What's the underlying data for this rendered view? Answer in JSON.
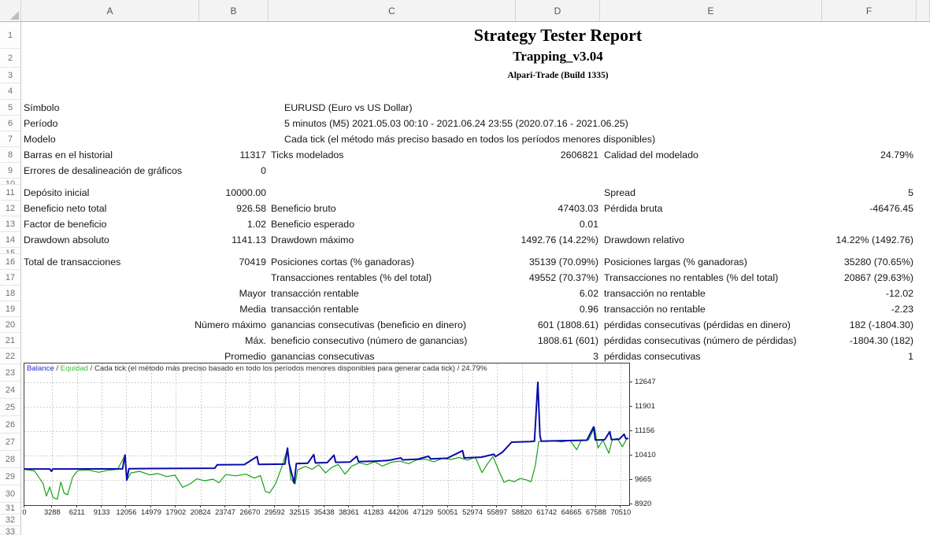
{
  "sheet": {
    "columns": [
      "A",
      "B",
      "C",
      "D",
      "E",
      "F",
      ""
    ],
    "row_numbers": [
      "1",
      "2",
      "3",
      "4",
      "5",
      "6",
      "7",
      "8",
      "9",
      "10",
      "11",
      "12",
      "13",
      "14",
      "15",
      "16",
      "17",
      "18",
      "19",
      "20",
      "21",
      "22",
      "23",
      "24",
      "25",
      "26",
      "27",
      "28",
      "29",
      "30",
      "31",
      "32",
      "33"
    ]
  },
  "report": {
    "title": "Strategy Tester Report",
    "subtitle": "Trapping_v3.04",
    "build": "Alpari-Trade (Build 1335)",
    "r5": {
      "a": "Símbolo",
      "c": "EURUSD (Euro vs US Dollar)"
    },
    "r6": {
      "a": "Período",
      "c": "5 minutos (M5) 2021.05.03 00:10 - 2021.06.24 23:55 (2020.07.16 - 2021.06.25)"
    },
    "r7": {
      "a": "Modelo",
      "c": "Cada tick (el método más preciso basado en todos los períodos menores disponibles)"
    },
    "r8": {
      "a": "Barras en el historial",
      "b": "11317",
      "c": "Ticks modelados",
      "d": "2606821",
      "e": "Calidad del modelado",
      "f": "24.79%"
    },
    "r9": {
      "a": "Errores de desalineación de gráficos",
      "b": "0"
    },
    "r11": {
      "a": "Depósito inicial",
      "b": "10000.00",
      "e": "Spread",
      "f": "5"
    },
    "r12": {
      "a": "Beneficio neto total",
      "b": "926.58",
      "c": "Beneficio bruto",
      "d": "47403.03",
      "e": "Pérdida bruta",
      "f": "-46476.45"
    },
    "r13": {
      "a": "Factor de beneficio",
      "b": "1.02",
      "c": "Beneficio esperado",
      "d": "0.01"
    },
    "r14": {
      "a": "Drawdown absoluto",
      "b": "1141.13",
      "c": "Drawdown máximo",
      "d": "1492.76 (14.22%)",
      "e": "Drawdown relativo",
      "f": "14.22% (1492.76)"
    },
    "r16": {
      "a": "Total de transacciones",
      "b": "70419",
      "c": "Posiciones cortas (% ganadoras)",
      "d": "35139 (70.09%)",
      "e": "Posiciones largas (% ganadoras)",
      "f": "35280 (70.65%)"
    },
    "r17": {
      "c": "Transacciones rentables (% del total)",
      "d": "49552 (70.37%)",
      "e": "Transacciones no rentables (% del total)",
      "f": "20867 (29.63%)"
    },
    "r18": {
      "b": "Mayor",
      "c": "transacción rentable",
      "d": "6.02",
      "e": "transacción no rentable",
      "f": "-12.02"
    },
    "r19": {
      "b": "Media",
      "c": "transacción rentable",
      "d": "0.96",
      "e": "transacción no rentable",
      "f": "-2.23"
    },
    "r20": {
      "b": "Número máximo",
      "c": "ganancias consecutivas (beneficio en dinero)",
      "d": "601 (1808.61)",
      "e": "pérdidas consecutivas (pérdidas en dinero)",
      "f": "182 (-1804.30)"
    },
    "r21": {
      "b": "Máx.",
      "c": "beneficio consecutivo (número de ganancias)",
      "d": "1808.61 (601)",
      "e": "pérdidas consecutivas (número de pérdidas)",
      "f": "-1804.30 (182)"
    },
    "r22": {
      "b": "Promedio",
      "c": "ganancias consecutivas",
      "d": "3",
      "e": "pérdidas consecutivas",
      "f": "1"
    }
  },
  "legend": {
    "balance": "Balance",
    "sep1": " / ",
    "equity": "Equidad",
    "rest": " / Cada tick (el método más preciso basado en todo los períodos menores disponibles para generar cada tick) / 24.79%"
  },
  "chart_data": {
    "type": "line",
    "title": "",
    "legend_entries": [
      "Balance",
      "Equidad"
    ],
    "x_ticks": [
      0,
      3288,
      6211,
      9133,
      12056,
      14979,
      17902,
      20824,
      23747,
      26670,
      29592,
      32515,
      35438,
      38361,
      41283,
      44206,
      47129,
      50051,
      52974,
      55897,
      58820,
      61742,
      64665,
      67588,
      70510
    ],
    "y_ticks": [
      8920,
      9665,
      10410,
      11156,
      11901,
      12647
    ],
    "xlim": [
      0,
      71500
    ],
    "ylim": [
      8920,
      13225
    ],
    "grid": true,
    "colors": {
      "balance": "#0a0aaa",
      "equity": "#18a018",
      "grid": "#cfcfcf"
    },
    "series": [
      {
        "name": "Balance",
        "color": "#0a0aaa",
        "width": 2,
        "points": [
          [
            0,
            10000
          ],
          [
            3000,
            10000
          ],
          [
            3200,
            9930
          ],
          [
            3350,
            10000
          ],
          [
            11600,
            10005
          ],
          [
            11900,
            10430
          ],
          [
            12100,
            9660
          ],
          [
            12350,
            10010
          ],
          [
            15000,
            10015
          ],
          [
            20500,
            10020
          ],
          [
            22500,
            10025
          ],
          [
            22800,
            10130
          ],
          [
            26000,
            10135
          ],
          [
            27500,
            10380
          ],
          [
            27700,
            10140
          ],
          [
            30800,
            10150
          ],
          [
            31100,
            10640
          ],
          [
            31300,
            10160
          ],
          [
            31900,
            9570
          ],
          [
            32150,
            10165
          ],
          [
            33500,
            10175
          ],
          [
            34200,
            10440
          ],
          [
            34400,
            10185
          ],
          [
            35800,
            10195
          ],
          [
            36600,
            10420
          ],
          [
            36800,
            10205
          ],
          [
            38500,
            10215
          ],
          [
            39300,
            10390
          ],
          [
            39500,
            10225
          ],
          [
            41500,
            10240
          ],
          [
            43000,
            10260
          ],
          [
            44500,
            10340
          ],
          [
            44700,
            10280
          ],
          [
            46500,
            10300
          ],
          [
            47800,
            10390
          ],
          [
            48000,
            10310
          ],
          [
            50000,
            10330
          ],
          [
            51800,
            10560
          ],
          [
            52000,
            10340
          ],
          [
            54000,
            10360
          ],
          [
            55500,
            10450
          ],
          [
            55700,
            10380
          ],
          [
            56500,
            10510
          ],
          [
            57600,
            10820
          ],
          [
            59800,
            10840
          ],
          [
            60300,
            10850
          ],
          [
            60700,
            12650
          ],
          [
            60950,
            11020
          ],
          [
            61100,
            10850
          ],
          [
            63000,
            10860
          ],
          [
            65000,
            10870
          ],
          [
            66500,
            10880
          ],
          [
            67300,
            11290
          ],
          [
            67500,
            10885
          ],
          [
            68600,
            10895
          ],
          [
            69200,
            11140
          ],
          [
            69400,
            10900
          ],
          [
            70300,
            10910
          ],
          [
            70900,
            11060
          ],
          [
            71100,
            10930
          ],
          [
            71400,
            10930
          ]
        ]
      },
      {
        "name": "Equidad",
        "color": "#18a018",
        "width": 1.2,
        "points": [
          [
            0,
            9990
          ],
          [
            1200,
            9940
          ],
          [
            2200,
            9560
          ],
          [
            2600,
            9170
          ],
          [
            3000,
            9450
          ],
          [
            3400,
            9120
          ],
          [
            3900,
            9080
          ],
          [
            4300,
            9600
          ],
          [
            4700,
            9260
          ],
          [
            5100,
            9210
          ],
          [
            5700,
            9750
          ],
          [
            6300,
            9950
          ],
          [
            7500,
            9970
          ],
          [
            8800,
            9900
          ],
          [
            9800,
            9960
          ],
          [
            11000,
            9985
          ],
          [
            11900,
            10420
          ],
          [
            12100,
            9650
          ],
          [
            12600,
            9880
          ],
          [
            13600,
            9930
          ],
          [
            14800,
            9820
          ],
          [
            15800,
            9860
          ],
          [
            16800,
            9770
          ],
          [
            17800,
            9810
          ],
          [
            18700,
            9440
          ],
          [
            19500,
            9530
          ],
          [
            20400,
            9700
          ],
          [
            21300,
            9640
          ],
          [
            22300,
            9690
          ],
          [
            23000,
            9580
          ],
          [
            23800,
            9830
          ],
          [
            25000,
            9790
          ],
          [
            26200,
            9840
          ],
          [
            27200,
            9720
          ],
          [
            27900,
            9800
          ],
          [
            28500,
            9310
          ],
          [
            29000,
            9270
          ],
          [
            29700,
            9550
          ],
          [
            30400,
            10040
          ],
          [
            31100,
            10620
          ],
          [
            31500,
            9690
          ],
          [
            32000,
            9540
          ],
          [
            32300,
            9970
          ],
          [
            33200,
            10080
          ],
          [
            34000,
            9990
          ],
          [
            34800,
            10130
          ],
          [
            35600,
            9880
          ],
          [
            36300,
            10040
          ],
          [
            37100,
            10140
          ],
          [
            37900,
            9840
          ],
          [
            38700,
            10090
          ],
          [
            39600,
            10190
          ],
          [
            40500,
            10130
          ],
          [
            41400,
            10220
          ],
          [
            42300,
            10090
          ],
          [
            43400,
            10210
          ],
          [
            44400,
            10240
          ],
          [
            45400,
            10160
          ],
          [
            46400,
            10280
          ],
          [
            47400,
            10300
          ],
          [
            48400,
            10220
          ],
          [
            49400,
            10320
          ],
          [
            50400,
            10290
          ],
          [
            51400,
            10350
          ],
          [
            52400,
            10270
          ],
          [
            53300,
            10360
          ],
          [
            54100,
            9890
          ],
          [
            54700,
            10140
          ],
          [
            55400,
            10380
          ],
          [
            56100,
            9940
          ],
          [
            56700,
            9590
          ],
          [
            57300,
            9660
          ],
          [
            57900,
            9610
          ],
          [
            58600,
            9710
          ],
          [
            59300,
            9670
          ],
          [
            59900,
            9610
          ],
          [
            60400,
            10100
          ],
          [
            60800,
            10840
          ],
          [
            61500,
            10850
          ],
          [
            62500,
            10860
          ],
          [
            63500,
            10830
          ],
          [
            64500,
            10870
          ],
          [
            65300,
            10590
          ],
          [
            65800,
            10860
          ],
          [
            66700,
            10890
          ],
          [
            67400,
            11270
          ],
          [
            67800,
            10640
          ],
          [
            68400,
            10880
          ],
          [
            69100,
            10480
          ],
          [
            69500,
            10900
          ],
          [
            70100,
            10930
          ],
          [
            70700,
            10680
          ],
          [
            71200,
            10920
          ],
          [
            71400,
            10925
          ]
        ]
      }
    ]
  }
}
